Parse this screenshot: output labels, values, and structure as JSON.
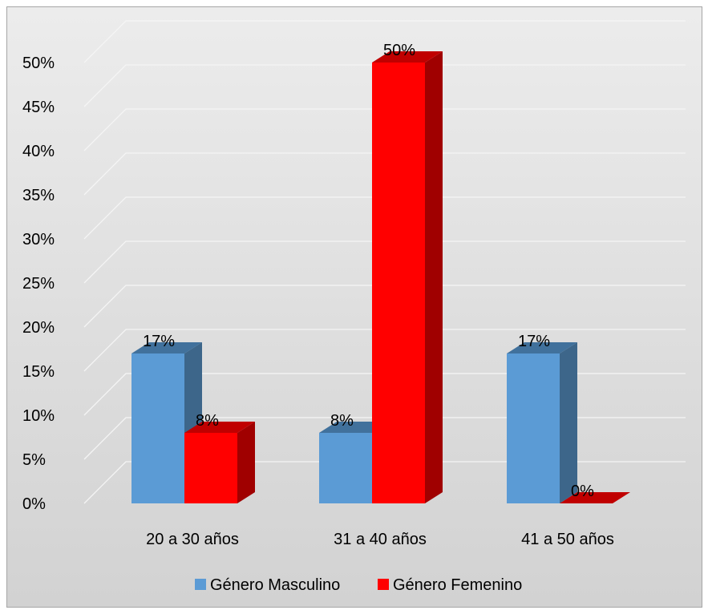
{
  "chart_data": {
    "type": "bar",
    "title": "",
    "xlabel": "",
    "ylabel": "",
    "categories": [
      "20 a 30 años",
      "31 a 40 años",
      "41 a 50 años"
    ],
    "series": [
      {
        "name": "Género Masculino",
        "color": "#5b9bd5",
        "side_color": "#3d668a",
        "top_color": "#41719c",
        "values": [
          17,
          8,
          17
        ],
        "labels": [
          "17%",
          "8%",
          "17%"
        ]
      },
      {
        "name": "Género Femenino",
        "color": "#ff0000",
        "side_color": "#a00000",
        "top_color": "#c00000",
        "values": [
          8,
          50,
          0
        ],
        "labels": [
          "8%",
          "50%",
          "0%"
        ]
      }
    ],
    "ylim": [
      0,
      50
    ],
    "yticks": [
      "0%",
      "5%",
      "10%",
      "15%",
      "20%",
      "25%",
      "30%",
      "35%",
      "40%",
      "45%",
      "50%"
    ],
    "grid": true,
    "legend_position": "bottom",
    "style": "3d-clustered-column"
  }
}
